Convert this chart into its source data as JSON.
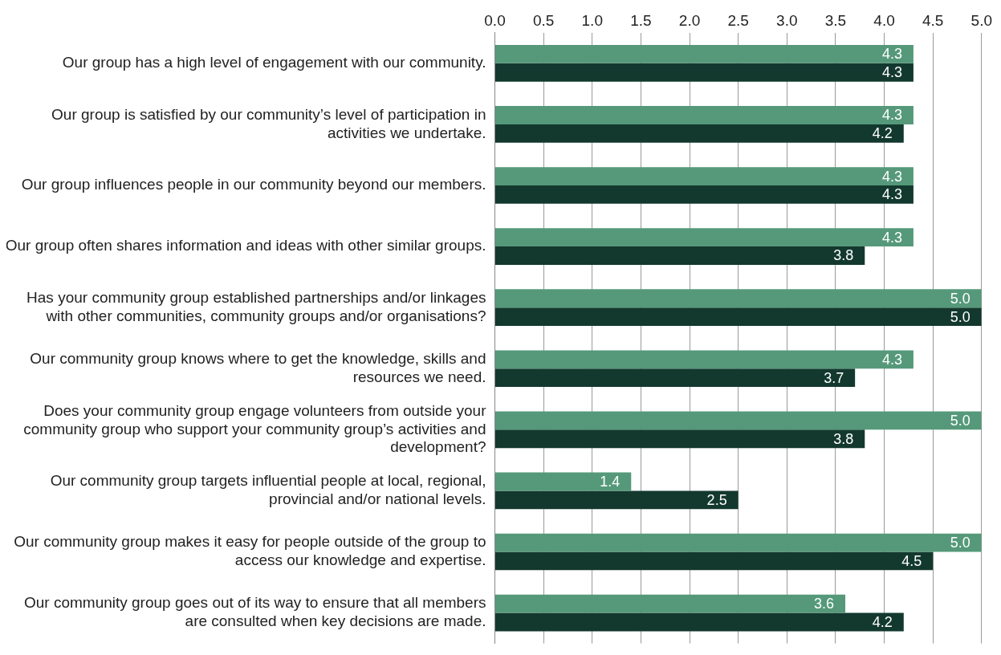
{
  "chart_data": {
    "type": "bar",
    "orientation": "horizontal",
    "categories": [
      "Our group has a high level of engagement with our community.",
      "Our group is satisfied by our community’s level of participation in activities we undertake.",
      "Our group influences people in our community beyond our members.",
      "Our group often shares information and ideas with other similar groups.",
      "Has your community group established partnerships and/or linkages with other communities, community groups and/or organisations?",
      "Our community group knows where to get the knowledge, skills and resources we need.",
      "Does your community group engage volunteers from outside your community group who support your community group’s activities and development?",
      "Our community group targets influential people at local, regional, provincial and/or national levels.",
      "Our community group makes it easy for people outside of the group to access our knowledge and expertise.",
      "Our community group goes out of its way to ensure that all members are consulted when key decisions are made."
    ],
    "series": [
      {
        "color": "#55997a",
        "values": [
          4.3,
          4.3,
          4.3,
          4.3,
          5.0,
          4.3,
          5.0,
          1.4,
          5.0,
          3.6
        ],
        "value_labels": [
          "4.3",
          "4.3",
          "4.3",
          "4.3",
          "5.0",
          "4.3",
          "5.0",
          "1.4",
          "5.0",
          "3.6"
        ]
      },
      {
        "color": "#13392f",
        "values": [
          4.3,
          4.2,
          4.3,
          3.8,
          5.0,
          3.7,
          3.8,
          2.5,
          4.5,
          4.2
        ],
        "value_labels": [
          "4.3",
          "4.2",
          "4.3",
          "3.8",
          "5.0",
          "3.7",
          "3.8",
          "2.5",
          "4.5",
          "4.2"
        ]
      }
    ],
    "xlim": [
      0,
      5
    ],
    "xticks": [
      {
        "value": 0,
        "label": "0.0"
      },
      {
        "value": 0.5,
        "label": "0.5"
      },
      {
        "value": 1,
        "label": "1.0"
      },
      {
        "value": 1.5,
        "label": "1.5"
      },
      {
        "value": 2,
        "label": "2.0"
      },
      {
        "value": 2.5,
        "label": "2.5"
      },
      {
        "value": 3,
        "label": "3.0"
      },
      {
        "value": 3.5,
        "label": "3.5"
      },
      {
        "value": 4,
        "label": "4.0"
      },
      {
        "value": 4.5,
        "label": "4.5"
      },
      {
        "value": 5,
        "label": "5.0"
      }
    ],
    "grid": "x",
    "legend": false
  }
}
